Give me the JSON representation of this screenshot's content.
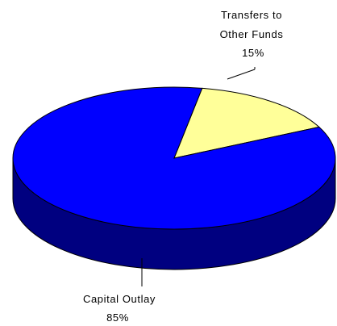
{
  "chart_data": {
    "type": "pie",
    "style": "3d",
    "title": "",
    "slices": [
      {
        "label_lines": [
          "Transfers to",
          "Other Funds"
        ],
        "value": 15,
        "value_label": "15%",
        "color": "#ffff99"
      },
      {
        "label_lines": [
          "Capital Outlay"
        ],
        "value": 85,
        "value_label": "85%",
        "color": "#0000ff"
      }
    ],
    "side_colors": {
      "Capital Outlay": "#000080",
      "Transfers to Other Funds": "#999966"
    },
    "legend": "none",
    "label_placement": "outside with leader lines"
  }
}
